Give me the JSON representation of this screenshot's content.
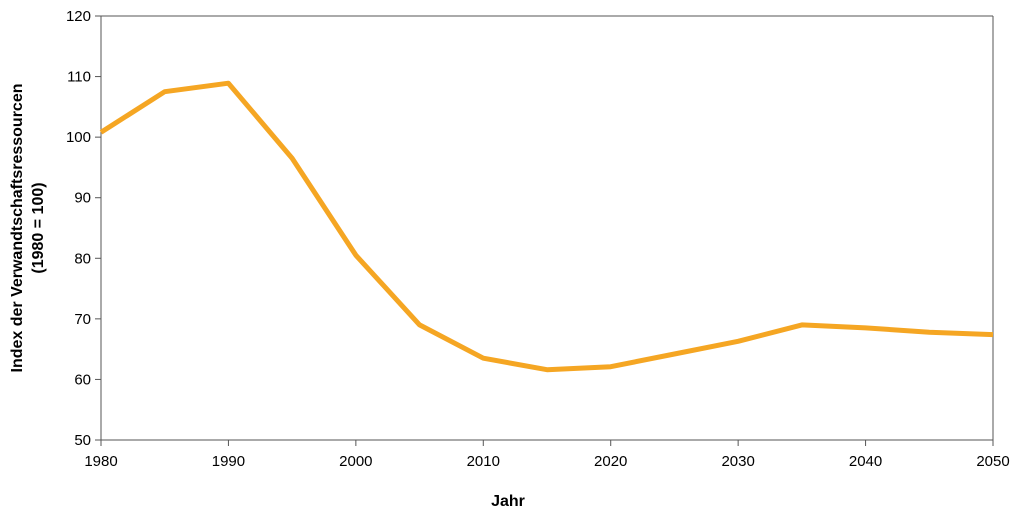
{
  "chart_data": {
    "type": "line",
    "title": "",
    "xlabel": "Jahr",
    "ylabel_line1": "Index der Verwandtschaftsressourcen",
    "ylabel_line2": "(1980 = 100)",
    "xlim": [
      1980,
      2050
    ],
    "ylim": [
      50,
      120
    ],
    "xticks": [
      1980,
      1990,
      2000,
      2010,
      2020,
      2030,
      2040,
      2050
    ],
    "yticks": [
      50,
      60,
      70,
      80,
      90,
      100,
      110,
      120
    ],
    "grid": false,
    "legend": "none",
    "series": [
      {
        "color": "#F5A623",
        "x": [
          1980,
          1985,
          1990,
          1995,
          2000,
          2005,
          2010,
          2015,
          2020,
          2025,
          2030,
          2035,
          2040,
          2045,
          2050
        ],
        "y": [
          100.8,
          107.5,
          108.9,
          96.5,
          80.5,
          69.0,
          63.5,
          61.6,
          62.1,
          64.2,
          66.3,
          69.0,
          68.5,
          67.8,
          67.4
        ]
      }
    ]
  }
}
